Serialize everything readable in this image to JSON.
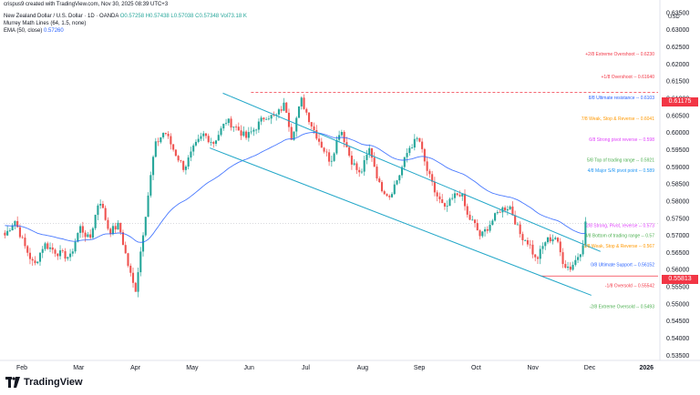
{
  "credit": "crispus9 created with TradingView.com, Nov 30, 2025 08:39 UTC+3",
  "header": {
    "symbol": "New Zealand Dollar / U.S. Dollar · 1D · OANDA",
    "ohlc": "O0.57258 H0.57438 L0.57038 C0.57348",
    "volume": "Vol73.18 K",
    "indicator1": "Murrey Math Lines (64, 1.5, none)",
    "indicator2_label": "EMA (50, close)",
    "indicator2_value": "0.57260"
  },
  "currency": "USD",
  "brand": "TradingView",
  "price_badges": {
    "upper": "0.61175",
    "lower": "0.55813"
  },
  "colors": {
    "up": "#26a69a",
    "down": "#ef5350",
    "ema": "#2962ff",
    "channel": "#22a7c8"
  },
  "chart_data": {
    "type": "candlestick",
    "title": "New Zealand Dollar / U.S. Dollar · 1D · OANDA",
    "y_axis": {
      "ticks": [
        "0.63500",
        "0.63000",
        "0.62500",
        "0.62000",
        "0.61500",
        "0.61000",
        "0.60500",
        "0.60000",
        "0.59500",
        "0.59000",
        "0.58500",
        "0.58000",
        "0.57500",
        "0.57000",
        "0.56500",
        "0.56000",
        "0.55500",
        "0.55000",
        "0.54500",
        "0.54000",
        "0.53500"
      ],
      "range": [
        0.5335,
        0.6355
      ]
    },
    "x_axis": {
      "labels": [
        "Feb",
        "Mar",
        "Apr",
        "May",
        "Jun",
        "Jul",
        "Aug",
        "Sep",
        "Oct",
        "Nov",
        "Dec",
        "2026"
      ]
    },
    "murrey_lines": [
      {
        "label": "+2/8 Extreme Overshoot",
        "value": "0.6230",
        "color": "#f23645"
      },
      {
        "label": "+1/8 Overshoot",
        "value": "0.61640",
        "color": "#f23645"
      },
      {
        "label": "8/8 Ultimate resistance",
        "value": "0.6103",
        "color": "#2962ff"
      },
      {
        "label": "7/8 Weak, Stop & Reverse",
        "value": "0.6041",
        "color": "#ff9800"
      },
      {
        "label": "6/8 Strong pivot reverse",
        "value": "0.598",
        "color": "#e040fb"
      },
      {
        "label": "5/8 Top of trading range",
        "value": "0.5921",
        "color": "#4caf50"
      },
      {
        "label": "4/8 Major S/R pivot point",
        "value": "0.589",
        "color": "#2196f3"
      },
      {
        "label": "3/8 Bottom of trading range",
        "value": "0.57",
        "color": "#4caf50"
      },
      {
        "label": "2/8 Strong, Pivot, reverse",
        "value": "0.573",
        "color": "#e040fb"
      },
      {
        "label": "1/8 Weak, Stop & Reverse",
        "value": "0.567",
        "color": "#ff9800"
      },
      {
        "label": "0/8 Ultimate Support",
        "value": "0.56152",
        "color": "#2962ff"
      },
      {
        "label": "-1/8 Oversold",
        "value": "0.55542",
        "color": "#f23645"
      },
      {
        "label": "-2/8 Extreme Oversold",
        "value": "0.5493",
        "color": "#4caf50"
      }
    ],
    "ema_last": 0.5726,
    "last_close": 0.57348,
    "key_levels": {
      "upper": 0.61175,
      "lower": 0.55813
    },
    "channel": {
      "upper": [
        [
          0.335,
          0.6115
        ],
        [
          0.912,
          0.5653
        ]
      ],
      "lower": [
        [
          0.315,
          0.5955
        ],
        [
          0.898,
          0.5525
        ]
      ]
    },
    "anchors": [
      [
        0.0,
        0.57
      ],
      [
        0.015,
        0.5745
      ],
      [
        0.03,
        0.567
      ],
      [
        0.045,
        0.561
      ],
      [
        0.06,
        0.5675
      ],
      [
        0.08,
        0.565
      ],
      [
        0.1,
        0.5635
      ],
      [
        0.115,
        0.5725
      ],
      [
        0.13,
        0.5685
      ],
      [
        0.145,
        0.581
      ],
      [
        0.16,
        0.571
      ],
      [
        0.175,
        0.573
      ],
      [
        0.19,
        0.5605
      ],
      [
        0.2,
        0.5535
      ],
      [
        0.215,
        0.575
      ],
      [
        0.23,
        0.596
      ],
      [
        0.245,
        0.6005
      ],
      [
        0.26,
        0.5945
      ],
      [
        0.275,
        0.5895
      ],
      [
        0.29,
        0.5955
      ],
      [
        0.305,
        0.5995
      ],
      [
        0.32,
        0.597
      ],
      [
        0.34,
        0.6035
      ],
      [
        0.355,
        0.6015
      ],
      [
        0.37,
        0.5985
      ],
      [
        0.385,
        0.6015
      ],
      [
        0.4,
        0.605
      ],
      [
        0.415,
        0.6045
      ],
      [
        0.43,
        0.6085
      ],
      [
        0.44,
        0.5985
      ],
      [
        0.445,
        0.6025
      ],
      [
        0.455,
        0.6095
      ],
      [
        0.47,
        0.6025
      ],
      [
        0.485,
        0.5965
      ],
      [
        0.5,
        0.5915
      ],
      [
        0.515,
        0.6015
      ],
      [
        0.53,
        0.5925
      ],
      [
        0.545,
        0.5875
      ],
      [
        0.56,
        0.5955
      ],
      [
        0.575,
        0.5845
      ],
      [
        0.59,
        0.5815
      ],
      [
        0.605,
        0.5875
      ],
      [
        0.62,
        0.5955
      ],
      [
        0.635,
        0.5985
      ],
      [
        0.645,
        0.5905
      ],
      [
        0.66,
        0.5825
      ],
      [
        0.675,
        0.5775
      ],
      [
        0.69,
        0.5815
      ],
      [
        0.7,
        0.5825
      ],
      [
        0.71,
        0.5755
      ],
      [
        0.72,
        0.5735
      ],
      [
        0.73,
        0.5695
      ],
      [
        0.745,
        0.5735
      ],
      [
        0.76,
        0.5775
      ],
      [
        0.775,
        0.5785
      ],
      [
        0.79,
        0.5705
      ],
      [
        0.805,
        0.5675
      ],
      [
        0.815,
        0.5625
      ],
      [
        0.83,
        0.5685
      ],
      [
        0.845,
        0.5695
      ],
      [
        0.858,
        0.5615
      ],
      [
        0.868,
        0.5605
      ],
      [
        0.878,
        0.5635
      ],
      [
        0.886,
        0.5665
      ],
      [
        0.891,
        0.5735
      ]
    ]
  }
}
